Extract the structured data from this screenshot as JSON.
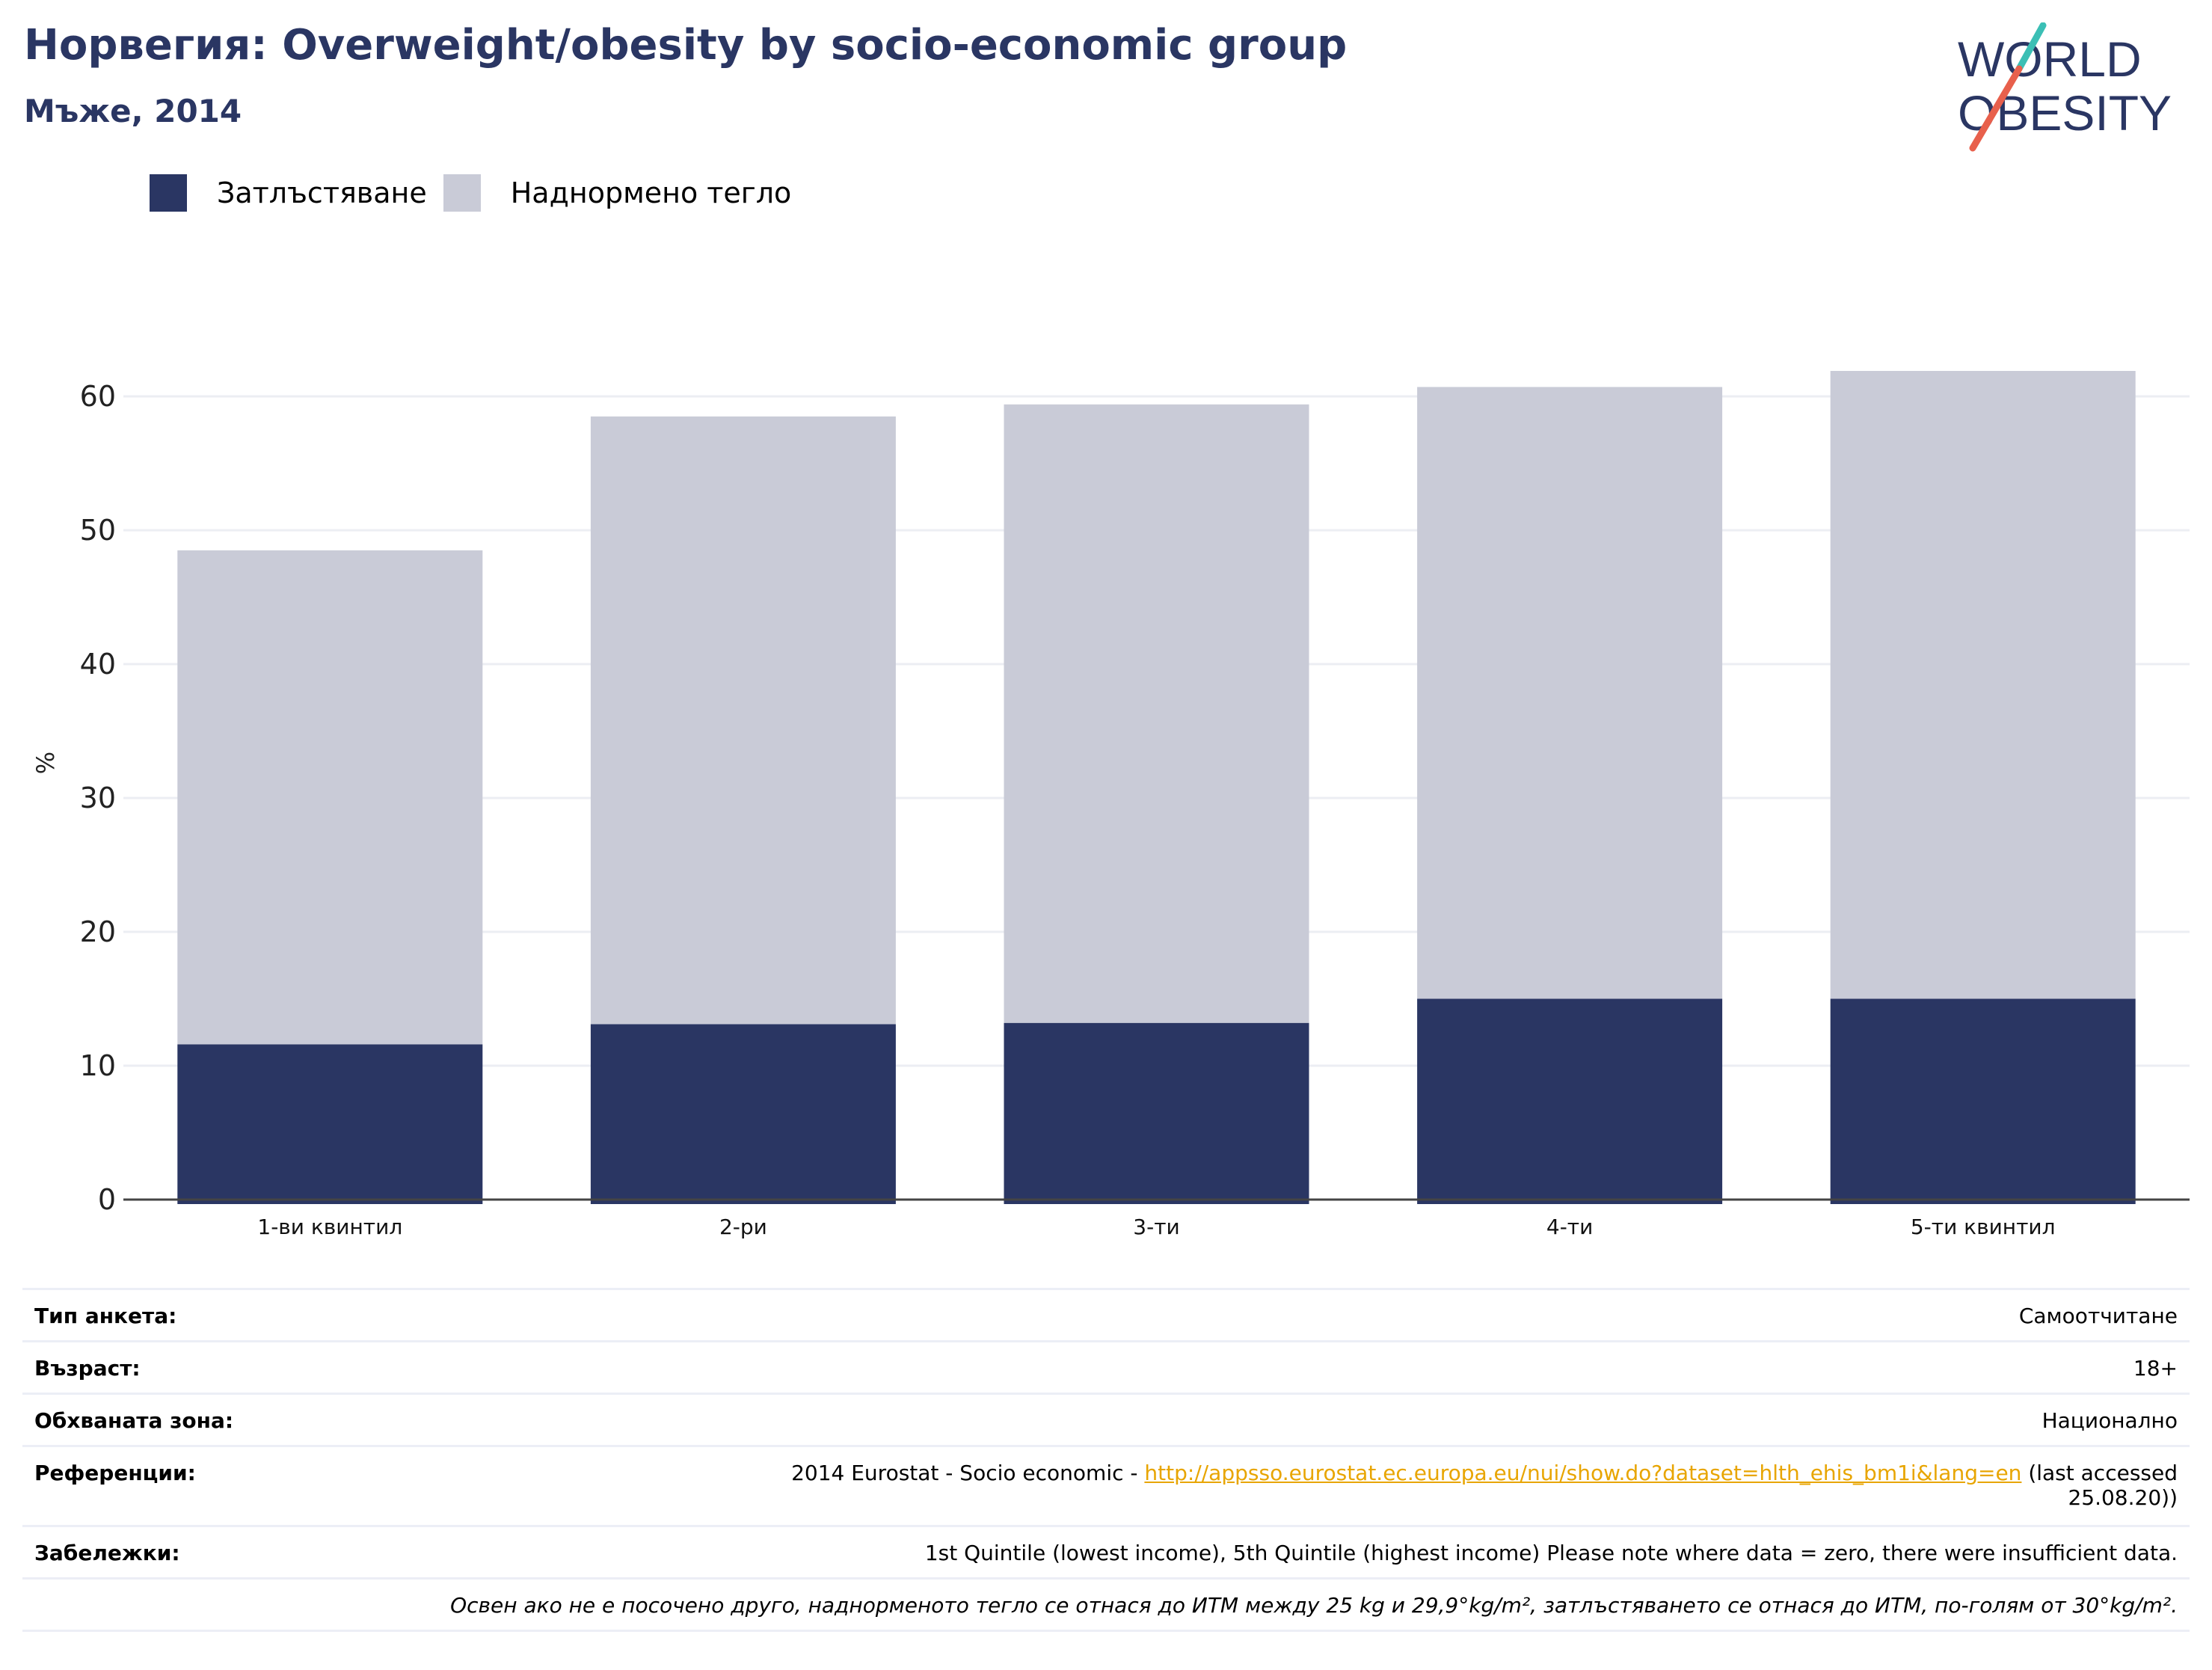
{
  "header": {
    "title": "Норвегия: Overweight/obesity by socio-economic group",
    "subtitle": "Мъже, 2014"
  },
  "logo": {
    "line1": "WORLD",
    "line2": "OBESITY",
    "colors": {
      "text": "#2a3663",
      "slash_top": "#3bbfb5",
      "slash_bottom": "#e8604c"
    }
  },
  "legend": {
    "items": [
      {
        "label": "Затлъстяване",
        "color": "#2a3663"
      },
      {
        "label": "Наднормено тегло",
        "color": "#c9cbd7"
      }
    ]
  },
  "chart_data": {
    "type": "bar",
    "stacked": true,
    "categories": [
      "1-ви квинтил",
      "2-ри",
      "3-ти",
      "4-ти",
      "5-ти квинтил"
    ],
    "series": [
      {
        "name": "Затлъстяване",
        "values": [
          11.6,
          13.1,
          13.2,
          15.0,
          15.0
        ],
        "color": "#2a3663"
      },
      {
        "name": "Наднормено тегло",
        "values": [
          36.9,
          45.4,
          46.2,
          45.7,
          46.9
        ],
        "color": "#c9cbd7"
      }
    ],
    "totals": [
      48.5,
      58.5,
      59.4,
      60.7,
      61.9
    ],
    "ylabel": "%",
    "ylim": [
      0,
      60
    ],
    "yticks": [
      "0",
      "10",
      "20",
      "30",
      "40",
      "50",
      "60"
    ],
    "grid": true,
    "legend_position": "top-left"
  },
  "meta": {
    "survey_type": {
      "label": "Тип анкета:",
      "value": "Самоотчитане"
    },
    "age": {
      "label": "Възраст:",
      "value": "18+"
    },
    "area": {
      "label": "Обхваната зона:",
      "value": "Национално"
    },
    "references": {
      "label": "Референции:",
      "prefix": "2014 Eurostat - Socio economic - ",
      "link": "http://appsso.eurostat.ec.europa.eu/nui/show.do?dataset=hlth_ehis_bm1i&lang=en",
      "suffix": " (last accessed",
      "suffix2": "25.08.20))"
    },
    "notes": {
      "label": "Забележки:",
      "value": "1st Quintile (lowest income), 5th Quintile (highest income) Please note where data = zero, there were insufficient data."
    },
    "footnote": "Освен ако не е посочено друго, наднорменото тегло се отнася до ИТМ между 25 kg и 29,9°kg/m², затлъстяването се отнася до ИТМ, по-голям от 30°kg/m²."
  }
}
